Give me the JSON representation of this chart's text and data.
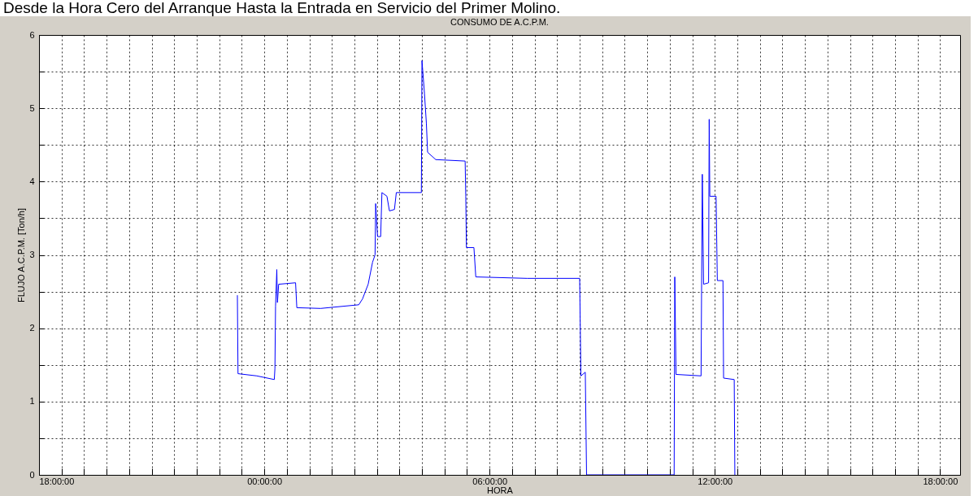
{
  "chart_data": {
    "type": "line",
    "title": "Desde la Hora Cero del Arranque Hasta la Entrada en Servicio del Primer Molino.",
    "subtitle": "CONSUMO DE A.C.P.M.",
    "xlabel": "HORA",
    "ylabel": "FLUJO A.C.P.M. [Ton/h]",
    "x": [
      "2000-01-01T23:17",
      "2000-01-01T23:18",
      "2000-01-01T23:48",
      "2000-01-02T00:16",
      "2000-01-02T00:17",
      "2000-01-02T00:18",
      "2000-01-02T00:20",
      "2000-01-02T00:21",
      "2000-01-02T00:23",
      "2000-01-02T00:50",
      "2000-01-02T00:52",
      "2000-01-02T01:30",
      "2000-01-02T02:31",
      "2000-01-02T02:37",
      "2000-01-02T02:46",
      "2000-01-02T02:53",
      "2000-01-02T02:57",
      "2000-01-02T02:58",
      "2000-01-02T03:01",
      "2000-01-02T03:06",
      "2000-01-02T03:08",
      "2000-01-02T03:16",
      "2000-01-02T03:20",
      "2000-01-02T03:28",
      "2000-01-02T03:31",
      "2000-01-02T04:11",
      "2000-01-02T04:12",
      "2000-01-02T04:16",
      "2000-01-02T04:19",
      "2000-01-02T04:21",
      "2000-01-02T04:34",
      "2000-01-02T05:21",
      "2000-01-02T05:22",
      "2000-01-02T05:23",
      "2000-01-02T05:35",
      "2000-01-02T05:38",
      "2000-01-02T07:00",
      "2000-01-02T08:24",
      "2000-01-02T08:26",
      "2000-01-02T08:33",
      "2000-01-02T08:35",
      "2000-01-02T10:55",
      "2000-01-02T10:56",
      "2000-01-02T10:58",
      "2000-01-02T11:38",
      "2000-01-02T11:39",
      "2000-01-02T11:40",
      "2000-01-02T11:42",
      "2000-01-02T11:50",
      "2000-01-02T11:51",
      "2000-01-02T11:52",
      "2000-01-02T12:02",
      "2000-01-02T12:04",
      "2000-01-02T12:13",
      "2000-01-02T12:14",
      "2000-01-02T12:31",
      "2000-01-02T12:32"
    ],
    "series": [
      {
        "color": "#0000ff",
        "values": [
          2.45,
          1.38,
          1.35,
          1.3,
          1.45,
          2.3,
          2.8,
          2.35,
          2.6,
          2.62,
          2.28,
          2.27,
          2.32,
          2.4,
          2.6,
          2.9,
          3.0,
          3.7,
          3.25,
          3.25,
          3.85,
          3.8,
          3.6,
          3.62,
          3.85,
          3.85,
          5.65,
          5.2,
          4.8,
          4.4,
          4.3,
          4.28,
          3.8,
          3.1,
          3.1,
          2.7,
          2.68,
          2.68,
          1.35,
          1.4,
          0,
          0,
          2.7,
          1.37,
          1.35,
          2.75,
          4.1,
          2.6,
          2.62,
          4.85,
          3.8,
          3.8,
          2.65,
          2.65,
          1.32,
          1.3,
          0
        ]
      }
    ],
    "xlim": [
      "2000-01-01T18:00",
      "2000-01-02T18:32"
    ],
    "xticks": [
      {
        "value": "2000-01-01T18:00",
        "label": "18:00:00"
      },
      {
        "value": "2000-01-01T18:36",
        "label": null
      },
      {
        "value": "2000-01-01T19:12",
        "label": null
      },
      {
        "value": "2000-01-01T19:48",
        "label": null
      },
      {
        "value": "2000-01-01T20:24",
        "label": null
      },
      {
        "value": "2000-01-01T21:00",
        "label": null
      },
      {
        "value": "2000-01-01T21:36",
        "label": null
      },
      {
        "value": "2000-01-01T22:12",
        "label": null
      },
      {
        "value": "2000-01-01T22:48",
        "label": null
      },
      {
        "value": "2000-01-01T23:24",
        "label": null
      },
      {
        "value": "2000-01-02T00:00",
        "label": "00:00:00"
      },
      {
        "value": "2000-01-02T00:36",
        "label": null
      },
      {
        "value": "2000-01-02T01:12",
        "label": null
      },
      {
        "value": "2000-01-02T01:48",
        "label": null
      },
      {
        "value": "2000-01-02T02:24",
        "label": null
      },
      {
        "value": "2000-01-02T03:00",
        "label": null
      },
      {
        "value": "2000-01-02T03:36",
        "label": null
      },
      {
        "value": "2000-01-02T04:12",
        "label": null
      },
      {
        "value": "2000-01-02T04:48",
        "label": null
      },
      {
        "value": "2000-01-02T05:24",
        "label": null
      },
      {
        "value": "2000-01-02T06:00",
        "label": "06:00:00"
      },
      {
        "value": "2000-01-02T06:36",
        "label": null
      },
      {
        "value": "2000-01-02T07:12",
        "label": null
      },
      {
        "value": "2000-01-02T07:48",
        "label": null
      },
      {
        "value": "2000-01-02T08:24",
        "label": null
      },
      {
        "value": "2000-01-02T09:00",
        "label": null
      },
      {
        "value": "2000-01-02T09:36",
        "label": null
      },
      {
        "value": "2000-01-02T10:12",
        "label": null
      },
      {
        "value": "2000-01-02T10:48",
        "label": null
      },
      {
        "value": "2000-01-02T11:24",
        "label": null
      },
      {
        "value": "2000-01-02T12:00",
        "label": "12:00:00"
      },
      {
        "value": "2000-01-02T12:36",
        "label": null
      },
      {
        "value": "2000-01-02T13:12",
        "label": null
      },
      {
        "value": "2000-01-02T13:48",
        "label": null
      },
      {
        "value": "2000-01-02T14:24",
        "label": null
      },
      {
        "value": "2000-01-02T15:00",
        "label": null
      },
      {
        "value": "2000-01-02T15:36",
        "label": null
      },
      {
        "value": "2000-01-02T16:12",
        "label": null
      },
      {
        "value": "2000-01-02T16:48",
        "label": null
      },
      {
        "value": "2000-01-02T17:24",
        "label": null
      },
      {
        "value": "2000-01-02T18:00",
        "label": "18:00:00"
      }
    ],
    "ylim": [
      0,
      6
    ],
    "yticks": [
      0,
      {
        "value": 0.5,
        "label": null
      },
      1,
      {
        "value": 1.5,
        "label": null
      },
      2,
      {
        "value": 2.5,
        "label": null
      },
      3,
      {
        "value": 3.5,
        "label": null
      },
      4,
      {
        "value": 4.5,
        "label": null
      },
      5,
      {
        "value": 5.5,
        "label": null
      },
      6
    ],
    "grid": true,
    "marker": "none",
    "line_style": "solid"
  }
}
